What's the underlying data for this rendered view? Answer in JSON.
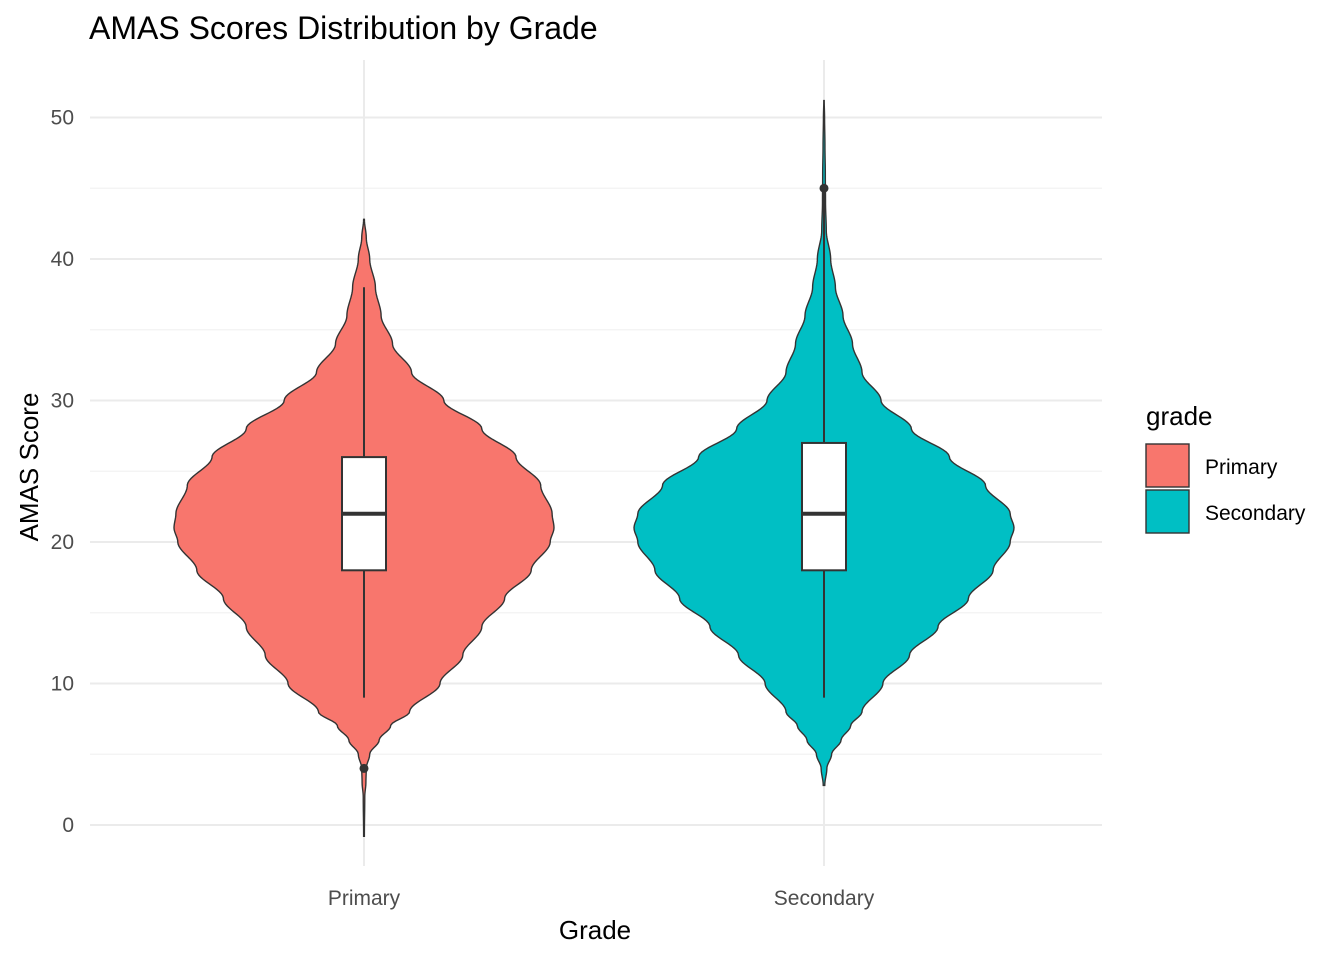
{
  "chart_data": {
    "type": "violin",
    "title": "AMAS Scores Distribution by Grade",
    "xlabel": "Grade",
    "ylabel": "AMAS Score",
    "categories": [
      "Primary",
      "Secondary"
    ],
    "ylim": [
      -3,
      54
    ],
    "y_ticks": [
      0,
      10,
      20,
      30,
      40,
      50
    ],
    "grid": true,
    "legend": {
      "title": "grade",
      "position": "right",
      "entries": [
        "Primary",
        "Secondary"
      ]
    },
    "series": [
      {
        "name": "Primary",
        "color": "#F8766D",
        "range": [
          -0.8,
          42.8
        ],
        "density": [
          [
            -0.8,
            0.002
          ],
          [
            2,
            0.004
          ],
          [
            3,
            0.01
          ],
          [
            4,
            0.012
          ],
          [
            5,
            0.03
          ],
          [
            6,
            0.08
          ],
          [
            7,
            0.14
          ],
          [
            8,
            0.24
          ],
          [
            10,
            0.4
          ],
          [
            12,
            0.52
          ],
          [
            14,
            0.62
          ],
          [
            16,
            0.74
          ],
          [
            18,
            0.88
          ],
          [
            20,
            0.98
          ],
          [
            21,
            1.0
          ],
          [
            22,
            0.99
          ],
          [
            24,
            0.93
          ],
          [
            26,
            0.8
          ],
          [
            28,
            0.62
          ],
          [
            30,
            0.42
          ],
          [
            32,
            0.25
          ],
          [
            34,
            0.15
          ],
          [
            36,
            0.09
          ],
          [
            38,
            0.06
          ],
          [
            40,
            0.03
          ],
          [
            41.5,
            0.012
          ],
          [
            42.8,
            0.002
          ]
        ],
        "box": {
          "q1": 18,
          "median": 22,
          "q3": 26,
          "whisker_low": 9,
          "whisker_high": 38
        },
        "outliers": [
          4
        ]
      },
      {
        "name": "Secondary",
        "color": "#00BFC4",
        "range": [
          2.8,
          51.2
        ],
        "density": [
          [
            2.8,
            0.004
          ],
          [
            4,
            0.015
          ],
          [
            5,
            0.04
          ],
          [
            6,
            0.09
          ],
          [
            7,
            0.14
          ],
          [
            8,
            0.2
          ],
          [
            10,
            0.31
          ],
          [
            12,
            0.45
          ],
          [
            14,
            0.6
          ],
          [
            16,
            0.76
          ],
          [
            18,
            0.89
          ],
          [
            20,
            0.98
          ],
          [
            21,
            1.0
          ],
          [
            22,
            0.98
          ],
          [
            24,
            0.85
          ],
          [
            26,
            0.66
          ],
          [
            28,
            0.46
          ],
          [
            30,
            0.3
          ],
          [
            32,
            0.2
          ],
          [
            34,
            0.15
          ],
          [
            36,
            0.1
          ],
          [
            38,
            0.06
          ],
          [
            40,
            0.035
          ],
          [
            42,
            0.012
          ],
          [
            44,
            0.008
          ],
          [
            46,
            0.007
          ],
          [
            48,
            0.005
          ],
          [
            50,
            0.003
          ],
          [
            51.2,
            0.001
          ]
        ],
        "box": {
          "q1": 18,
          "median": 22,
          "q3": 27,
          "whisker_low": 9,
          "whisker_high": 45
        },
        "outliers": [
          45
        ]
      }
    ]
  }
}
